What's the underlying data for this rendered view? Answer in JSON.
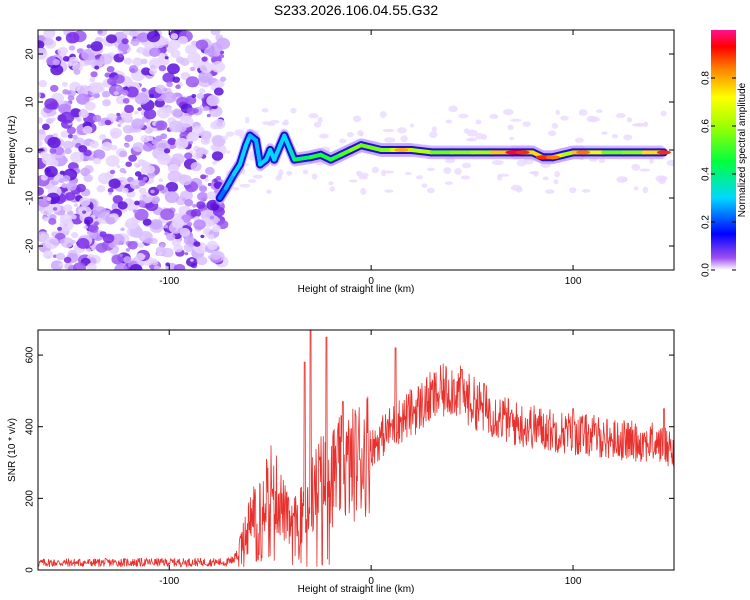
{
  "title": "S233.2026.106.04.55.G32",
  "chart_data": [
    {
      "type": "heatmap",
      "name": "spectrogram",
      "xlabel": "Height of straight line (km)",
      "ylabel": "Frequency (Hz)",
      "xlim": [
        -165,
        150
      ],
      "ylim": [
        -25,
        25
      ],
      "xticks": [
        -100,
        0,
        100
      ],
      "yticks": [
        -20,
        -10,
        0,
        10,
        20
      ],
      "colorbar": {
        "label": "Normalized spectral amplitude",
        "range": [
          0,
          1
        ],
        "ticks": [
          0.0,
          0.2,
          0.4,
          0.6,
          0.8
        ]
      },
      "noise_region_x": [
        -165,
        -73
      ],
      "ridge": [
        {
          "x": -75,
          "f": -10,
          "a": 0.2
        },
        {
          "x": -72,
          "f": -8,
          "a": 0.25
        },
        {
          "x": -68,
          "f": -5,
          "a": 0.3
        },
        {
          "x": -65,
          "f": -3,
          "a": 0.3
        },
        {
          "x": -62,
          "f": 1,
          "a": 0.3
        },
        {
          "x": -60,
          "f": 3,
          "a": 0.3
        },
        {
          "x": -57,
          "f": 2,
          "a": 0.25
        },
        {
          "x": -55,
          "f": -3,
          "a": 0.3
        },
        {
          "x": -52,
          "f": -2,
          "a": 0.3
        },
        {
          "x": -50,
          "f": 0,
          "a": 0.3
        },
        {
          "x": -48,
          "f": -2,
          "a": 0.3
        },
        {
          "x": -45,
          "f": 1,
          "a": 0.3
        },
        {
          "x": -43,
          "f": 3,
          "a": 0.3
        },
        {
          "x": -40,
          "f": 0,
          "a": 0.3
        },
        {
          "x": -38,
          "f": -2,
          "a": 0.4
        },
        {
          "x": -30,
          "f": -1.5,
          "a": 0.45
        },
        {
          "x": -25,
          "f": -1,
          "a": 0.5
        },
        {
          "x": -20,
          "f": -2,
          "a": 0.45
        },
        {
          "x": -15,
          "f": -1,
          "a": 0.5
        },
        {
          "x": -10,
          "f": 0,
          "a": 0.55
        },
        {
          "x": -5,
          "f": 1,
          "a": 0.6
        },
        {
          "x": 0,
          "f": 0.5,
          "a": 0.5
        },
        {
          "x": 5,
          "f": 0,
          "a": 0.6
        },
        {
          "x": 10,
          "f": 0,
          "a": 0.55
        },
        {
          "x": 15,
          "f": 0,
          "a": 0.8
        },
        {
          "x": 20,
          "f": 0,
          "a": 0.7
        },
        {
          "x": 30,
          "f": -0.5,
          "a": 0.55
        },
        {
          "x": 40,
          "f": -0.5,
          "a": 0.55
        },
        {
          "x": 50,
          "f": -0.5,
          "a": 0.6
        },
        {
          "x": 60,
          "f": -0.5,
          "a": 0.6
        },
        {
          "x": 70,
          "f": -0.5,
          "a": 0.95
        },
        {
          "x": 75,
          "f": -0.5,
          "a": 0.9
        },
        {
          "x": 80,
          "f": -0.5,
          "a": 0.6
        },
        {
          "x": 85,
          "f": -1.5,
          "a": 0.9
        },
        {
          "x": 90,
          "f": -1.5,
          "a": 0.85
        },
        {
          "x": 95,
          "f": -1,
          "a": 0.55
        },
        {
          "x": 100,
          "f": -0.5,
          "a": 0.7
        },
        {
          "x": 105,
          "f": -0.5,
          "a": 0.85
        },
        {
          "x": 115,
          "f": -0.5,
          "a": 0.55
        },
        {
          "x": 125,
          "f": -0.5,
          "a": 0.55
        },
        {
          "x": 135,
          "f": -0.5,
          "a": 0.6
        },
        {
          "x": 145,
          "f": -0.5,
          "a": 0.9
        }
      ]
    },
    {
      "type": "line",
      "name": "snr",
      "xlabel": "Height of straight line (km)",
      "ylabel": "SNR (10 * v/v)",
      "xlim": [
        -165,
        150
      ],
      "ylim": [
        0,
        670
      ],
      "xticks": [
        -100,
        0,
        100
      ],
      "yticks": [
        0,
        200,
        400,
        600
      ],
      "color": "#e8302c",
      "envelope": [
        {
          "x": -165,
          "y": 20
        },
        {
          "x": -70,
          "y": 22
        },
        {
          "x": -65,
          "y": 60
        },
        {
          "x": -60,
          "y": 140
        },
        {
          "x": -55,
          "y": 200
        },
        {
          "x": -50,
          "y": 240
        },
        {
          "x": -45,
          "y": 190
        },
        {
          "x": -40,
          "y": 120
        },
        {
          "x": -35,
          "y": 150
        },
        {
          "x": -30,
          "y": 200
        },
        {
          "x": -25,
          "y": 250
        },
        {
          "x": -20,
          "y": 260
        },
        {
          "x": -15,
          "y": 280
        },
        {
          "x": -10,
          "y": 290
        },
        {
          "x": -5,
          "y": 320
        },
        {
          "x": 0,
          "y": 340
        },
        {
          "x": 10,
          "y": 400
        },
        {
          "x": 20,
          "y": 440
        },
        {
          "x": 30,
          "y": 480
        },
        {
          "x": 40,
          "y": 510
        },
        {
          "x": 50,
          "y": 470
        },
        {
          "x": 60,
          "y": 440
        },
        {
          "x": 70,
          "y": 410
        },
        {
          "x": 80,
          "y": 400
        },
        {
          "x": 90,
          "y": 390
        },
        {
          "x": 100,
          "y": 380
        },
        {
          "x": 110,
          "y": 375
        },
        {
          "x": 120,
          "y": 365
        },
        {
          "x": 130,
          "y": 360
        },
        {
          "x": 140,
          "y": 355
        },
        {
          "x": 150,
          "y": 340
        }
      ],
      "spikes": [
        {
          "x": -33,
          "y": 580
        },
        {
          "x": -30,
          "y": 670
        },
        {
          "x": -22,
          "y": 650
        },
        {
          "x": -14,
          "y": 470
        },
        {
          "x": 12,
          "y": 620
        },
        {
          "x": 45,
          "y": 560
        },
        {
          "x": 56,
          "y": 520
        },
        {
          "x": 100,
          "y": 450
        },
        {
          "x": 145,
          "y": 450
        }
      ]
    }
  ]
}
